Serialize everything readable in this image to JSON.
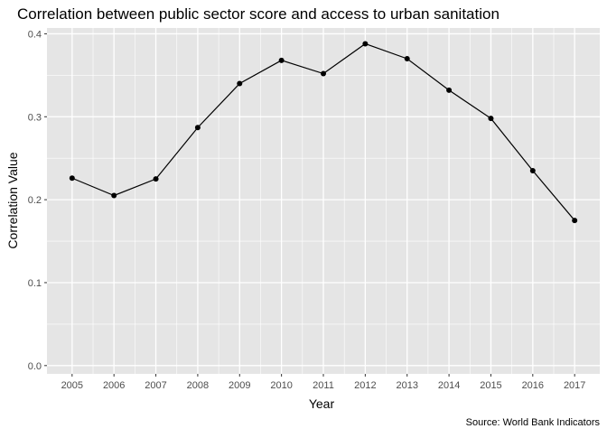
{
  "chart_data": {
    "type": "line",
    "title": "Correlation between public sector score and access to urban sanitation",
    "xlabel": "Year",
    "ylabel": "Correlation Value",
    "caption": "Source: World Bank Indicators",
    "x": [
      2005,
      2006,
      2007,
      2008,
      2009,
      2010,
      2011,
      2012,
      2013,
      2014,
      2015,
      2016,
      2017
    ],
    "y": [
      0.226,
      0.205,
      0.225,
      0.287,
      0.34,
      0.368,
      0.352,
      0.388,
      0.37,
      0.332,
      0.298,
      0.235,
      0.175
    ],
    "xlim": [
      2004.4,
      2017.6
    ],
    "ylim": [
      -0.01,
      0.407
    ],
    "x_ticks": [
      "2005",
      "2006",
      "2007",
      "2008",
      "2009",
      "2010",
      "2011",
      "2012",
      "2013",
      "2014",
      "2015",
      "2016",
      "2017"
    ],
    "y_ticks": [
      "0.0",
      "0.1",
      "0.2",
      "0.3",
      "0.4"
    ],
    "y_tick_values": [
      0.0,
      0.1,
      0.2,
      0.3,
      0.4
    ],
    "grid": true,
    "legend": "none",
    "colors": {
      "panel": "#e5e5e5",
      "grid_major": "#ffffff",
      "line": "#000000",
      "point": "#000000",
      "text": "#000000",
      "tick_text": "#4d4d4d",
      "tick_mark": "#333333"
    }
  }
}
